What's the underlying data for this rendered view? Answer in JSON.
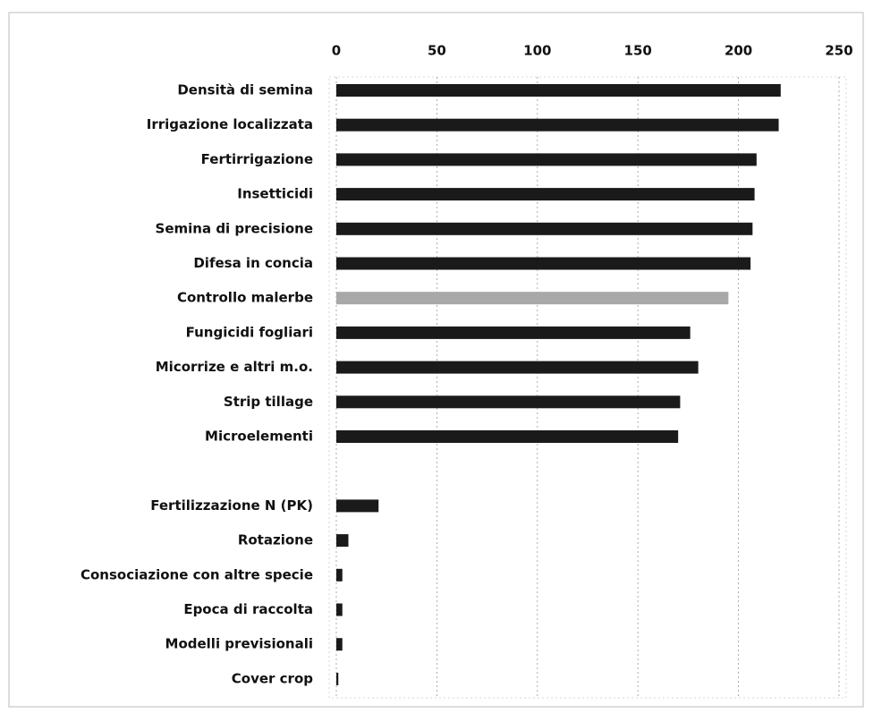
{
  "chart_data": {
    "type": "hbar",
    "categories": [
      "Densità di semina",
      "Irrigazione localizzata",
      "Fertirrigazione",
      "Insetticidi",
      "Semina di precisione",
      "Difesa in concia",
      "Controllo malerbe",
      "Fungicidi fogliari",
      "Micorrize e altri m.o.",
      "Strip tillage",
      "Microelementi",
      null,
      "Fertilizzazione N (PK)",
      "Rotazione",
      "Consociazione con altre specie",
      "Epoca di raccolta",
      "Modelli previsionali",
      "Cover crop"
    ],
    "values": [
      221,
      220,
      209,
      208,
      207,
      206,
      195,
      176,
      180,
      171,
      170,
      null,
      21,
      6,
      3,
      3,
      3,
      1
    ],
    "colors": [
      "#1a1a1a",
      "#1a1a1a",
      "#1a1a1a",
      "#1a1a1a",
      "#1a1a1a",
      "#1a1a1a",
      "#a8a8a8",
      "#1a1a1a",
      "#1a1a1a",
      "#1a1a1a",
      "#1a1a1a",
      null,
      "#1a1a1a",
      "#1a1a1a",
      "#1a1a1a",
      "#1a1a1a",
      "#1a1a1a",
      "#1a1a1a"
    ],
    "xlim": [
      0,
      250
    ],
    "xticks": [
      0,
      50,
      100,
      150,
      200,
      250
    ],
    "grid": true
  }
}
